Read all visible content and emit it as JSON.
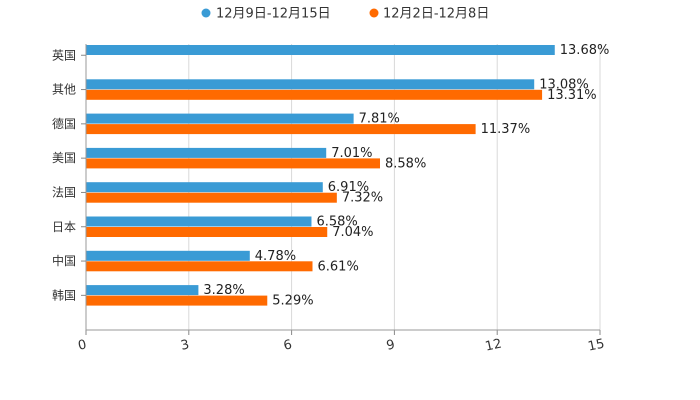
{
  "chart_data": {
    "type": "bar",
    "orientation": "horizontal",
    "categories": [
      "英国",
      "其他",
      "德国",
      "美国",
      "法国",
      "日本",
      "中国",
      "韩国"
    ],
    "series": [
      {
        "name": "12月9日-12月15日",
        "color": "#3a9bd5",
        "values": [
          13.68,
          13.08,
          7.81,
          7.01,
          6.91,
          6.58,
          4.78,
          3.28
        ],
        "labels": [
          "13.68%",
          "13.08%",
          "7.81%",
          "7.01%",
          "6.91%",
          "6.58%",
          "4.78%",
          "3.28%"
        ]
      },
      {
        "name": "12月2日-12月8日",
        "color": "#ff6a00",
        "values": [
          null,
          13.31,
          11.37,
          8.58,
          7.32,
          7.04,
          6.61,
          5.29
        ],
        "labels": [
          "",
          "13.31%",
          "11.37%",
          "8.58%",
          "7.32%",
          "7.04%",
          "6.61%",
          "5.29%"
        ]
      }
    ],
    "xlim": [
      0,
      15
    ],
    "xticks": [
      0,
      3,
      6,
      9,
      12,
      15
    ],
    "xtick_labels": [
      "0",
      "3",
      "6",
      "9",
      "12",
      "15"
    ],
    "grid": true,
    "legend_position": "top-center"
  }
}
